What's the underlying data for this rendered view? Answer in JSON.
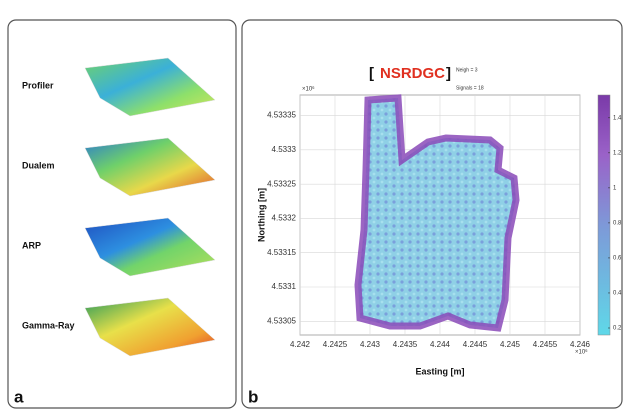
{
  "panel_a": {
    "label": "a",
    "maps": [
      {
        "label": "Profiler"
      },
      {
        "label": "Dualem"
      },
      {
        "label": "ARP"
      },
      {
        "label": "Gamma-Ray"
      }
    ]
  },
  "panel_b": {
    "label": "b",
    "title": "NSRDGC",
    "annotations": [
      "Neigh = 3",
      "Signals = 18"
    ],
    "xlabel": "Easting [m]",
    "ylabel": "Northing [m]",
    "x_exponent": "×10⁶",
    "y_exponent": "×10⁶",
    "xlim": [
      4.242,
      4.246
    ],
    "xticks": [
      4.242,
      4.2425,
      4.243,
      4.2435,
      4.244,
      4.2445,
      4.245,
      4.2455,
      4.246
    ],
    "ylim": [
      4.53303,
      4.53338
    ],
    "yticks": [
      4.53305,
      4.5331,
      4.53315,
      4.5332,
      4.53325,
      4.5333,
      4.53335
    ],
    "colorbar": {
      "lim": [
        0.16,
        1.53
      ],
      "ticks": [
        0.2,
        0.4,
        0.6,
        0.8,
        1,
        1.2,
        1.4
      ]
    }
  }
}
